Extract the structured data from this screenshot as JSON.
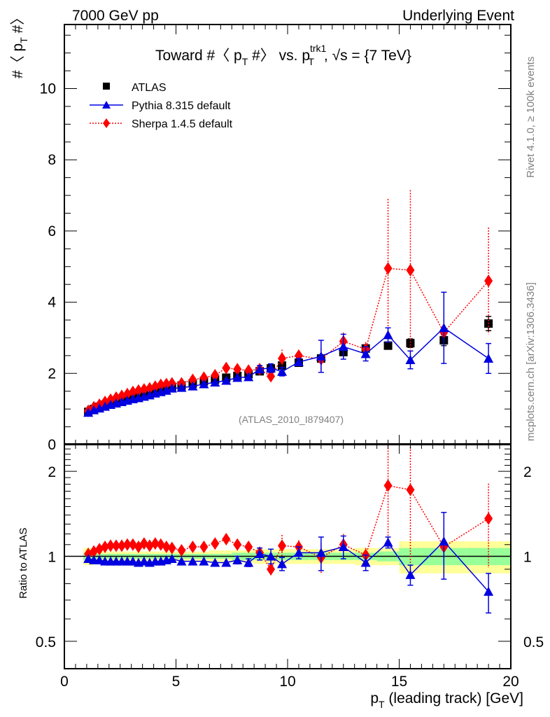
{
  "header": {
    "left": "7000 GeV pp",
    "right": "Underlying Event"
  },
  "side_labels": {
    "rivet": "Rivet 4.1.0, ≥ 100k events",
    "mcplots": "mcplots.cern.ch [arXiv:1306.3436]"
  },
  "watermark": "(ATLAS_2010_I879407)",
  "chart_data": [
    {
      "type": "scatter",
      "panel": "main",
      "title": "Toward #〈 p_T #〉 vs. p_T^trk1, √s = {7 TeV}",
      "title_parts": {
        "a": "Toward #〈 p",
        "sub1": "T",
        "b": " #〉 vs. p",
        "sup": "trk1",
        "sub2": "T",
        "c": ", √s = {7 TeV}"
      },
      "xlabel": "p_T (leading track) [GeV]",
      "ylabel": "#〈 p_T #〉",
      "xlim": [
        0,
        20
      ],
      "ylim": [
        0,
        11.8
      ],
      "yticks": [
        0,
        2,
        4,
        6,
        8,
        10
      ],
      "ytick_labels": [
        "0",
        "2",
        "4",
        "6",
        "8",
        "10"
      ],
      "legend_position": "top-left",
      "x": [
        1.07,
        1.32,
        1.57,
        1.82,
        2.07,
        2.32,
        2.57,
        2.82,
        3.07,
        3.32,
        3.57,
        3.82,
        4.07,
        4.32,
        4.57,
        4.82,
        5.25,
        5.75,
        6.25,
        6.75,
        7.25,
        7.75,
        8.25,
        8.75,
        9.25,
        9.75,
        10.5,
        11.5,
        12.5,
        13.5,
        14.5,
        15.5,
        17.0,
        19.0
      ],
      "series": [
        {
          "name": "ATLAS",
          "style": "marker-square",
          "color": "#000000",
          "values": [
            0.92,
            1.0,
            1.06,
            1.12,
            1.17,
            1.22,
            1.26,
            1.3,
            1.34,
            1.38,
            1.42,
            1.46,
            1.5,
            1.54,
            1.58,
            1.62,
            1.66,
            1.72,
            1.78,
            1.83,
            1.88,
            1.93,
            1.98,
            2.06,
            2.14,
            2.22,
            2.3,
            2.42,
            2.6,
            2.7,
            2.78,
            2.85,
            2.93,
            3.4
          ],
          "errors": [
            0.01,
            0.01,
            0.01,
            0.01,
            0.01,
            0.01,
            0.01,
            0.01,
            0.01,
            0.01,
            0.01,
            0.01,
            0.01,
            0.01,
            0.01,
            0.01,
            0.01,
            0.02,
            0.02,
            0.02,
            0.02,
            0.02,
            0.03,
            0.03,
            0.04,
            0.04,
            0.05,
            0.06,
            0.08,
            0.1,
            0.1,
            0.12,
            0.15,
            0.2
          ]
        },
        {
          "name": "Pythia 8.315 default",
          "style": "solid-triangle",
          "color": "#0000e0",
          "values": [
            0.9,
            0.97,
            1.02,
            1.07,
            1.12,
            1.16,
            1.2,
            1.24,
            1.28,
            1.31,
            1.35,
            1.39,
            1.44,
            1.48,
            1.52,
            1.58,
            1.6,
            1.64,
            1.7,
            1.75,
            1.8,
            1.88,
            1.9,
            2.12,
            2.15,
            2.05,
            2.32,
            2.48,
            2.75,
            2.55,
            3.08,
            2.38,
            3.28,
            2.42
          ],
          "errors": [
            0.01,
            0.01,
            0.01,
            0.01,
            0.01,
            0.01,
            0.01,
            0.01,
            0.01,
            0.01,
            0.01,
            0.01,
            0.01,
            0.02,
            0.02,
            0.02,
            0.02,
            0.03,
            0.03,
            0.04,
            0.05,
            0.06,
            0.07,
            0.1,
            0.12,
            0.12,
            0.1,
            0.45,
            0.35,
            0.2,
            0.2,
            0.25,
            1.0,
            0.42
          ]
        },
        {
          "name": "Sherpa 1.4.5 default",
          "style": "dotted-diamond",
          "color": "#ff0000",
          "values": [
            0.95,
            1.05,
            1.12,
            1.2,
            1.26,
            1.32,
            1.37,
            1.42,
            1.48,
            1.52,
            1.55,
            1.58,
            1.63,
            1.68,
            1.7,
            1.72,
            1.72,
            1.82,
            1.88,
            1.95,
            2.15,
            2.12,
            2.08,
            2.12,
            1.92,
            2.42,
            2.5,
            2.4,
            2.9,
            2.68,
            4.95,
            4.9,
            3.15,
            4.6
          ],
          "errors": [
            0.01,
            0.01,
            0.01,
            0.01,
            0.01,
            0.01,
            0.01,
            0.01,
            0.01,
            0.02,
            0.02,
            0.02,
            0.02,
            0.03,
            0.03,
            0.04,
            0.04,
            0.05,
            0.06,
            0.07,
            0.08,
            0.1,
            0.1,
            0.12,
            0.12,
            0.25,
            0.15,
            0.3,
            0.25,
            0.2,
            1.95,
            2.25,
            0.5,
            1.5
          ]
        }
      ]
    },
    {
      "type": "scatter",
      "panel": "ratio",
      "ylabel": "Ratio to ATLAS",
      "xlabel": "p_T (leading track) [GeV]",
      "xlim": [
        0,
        20
      ],
      "ylim": [
        0.4,
        2.5
      ],
      "yscale": "log",
      "yticks": [
        0.5,
        1,
        2
      ],
      "ytick_labels": [
        "0.5",
        "1",
        "2"
      ],
      "xticks": [
        0,
        5,
        10,
        15,
        20
      ],
      "xtick_labels": [
        "0",
        "5",
        "10",
        "15",
        "20"
      ],
      "reference_line": 1,
      "bands": {
        "stat_color": "#99ff99",
        "total_color": "#ffff99",
        "edges": [
          0.85,
          1.3,
          1.8,
          2.3,
          2.8,
          3.3,
          3.8,
          4.3,
          4.8,
          5.5,
          6.5,
          7.5,
          8.5,
          9.5,
          10.0,
          11.0,
          12.0,
          13.0,
          14.0,
          15.0,
          16.0,
          18.0,
          20.0
        ],
        "stat": [
          0.03,
          0.02,
          0.02,
          0.02,
          0.02,
          0.02,
          0.02,
          0.02,
          0.02,
          0.02,
          0.02,
          0.03,
          0.03,
          0.03,
          0.03,
          0.03,
          0.03,
          0.03,
          0.04,
          0.07,
          0.07,
          0.07
        ],
        "total": [
          0.07,
          0.04,
          0.04,
          0.04,
          0.04,
          0.04,
          0.04,
          0.04,
          0.04,
          0.04,
          0.05,
          0.05,
          0.06,
          0.06,
          0.06,
          0.06,
          0.06,
          0.07,
          0.07,
          0.13,
          0.13,
          0.13
        ]
      },
      "x": [
        1.07,
        1.32,
        1.57,
        1.82,
        2.07,
        2.32,
        2.57,
        2.82,
        3.07,
        3.32,
        3.57,
        3.82,
        4.07,
        4.32,
        4.57,
        4.82,
        5.25,
        5.75,
        6.25,
        6.75,
        7.25,
        7.75,
        8.25,
        8.75,
        9.25,
        9.75,
        10.5,
        11.5,
        12.5,
        13.5,
        14.5,
        15.5,
        17.0,
        19.0
      ],
      "series": [
        {
          "name": "Pythia 8.315 default",
          "color": "#0000e0",
          "values": [
            0.98,
            0.97,
            0.97,
            0.96,
            0.96,
            0.96,
            0.96,
            0.96,
            0.96,
            0.95,
            0.96,
            0.95,
            0.96,
            0.96,
            0.97,
            0.98,
            0.96,
            0.96,
            0.96,
            0.95,
            0.95,
            0.97,
            0.95,
            1.02,
            1.0,
            0.94,
            1.03,
            1.03,
            1.08,
            0.95,
            1.12,
            0.86,
            1.13,
            0.75
          ],
          "errors": [
            0.01,
            0.01,
            0.01,
            0.01,
            0.01,
            0.01,
            0.01,
            0.01,
            0.01,
            0.01,
            0.01,
            0.01,
            0.01,
            0.01,
            0.01,
            0.01,
            0.01,
            0.01,
            0.02,
            0.02,
            0.02,
            0.03,
            0.03,
            0.05,
            0.06,
            0.05,
            0.05,
            0.14,
            0.1,
            0.06,
            0.05,
            0.07,
            0.3,
            0.12
          ]
        },
        {
          "name": "Sherpa 1.4.5 default",
          "color": "#ff0000",
          "values": [
            1.02,
            1.04,
            1.06,
            1.08,
            1.09,
            1.09,
            1.09,
            1.1,
            1.1,
            1.08,
            1.11,
            1.09,
            1.11,
            1.1,
            1.08,
            1.07,
            1.05,
            1.08,
            1.08,
            1.11,
            1.15,
            1.1,
            1.08,
            1.03,
            0.9,
            1.09,
            1.08,
            0.99,
            1.1,
            1.01,
            1.78,
            1.72,
            1.08,
            1.36
          ],
          "errors": [
            0.01,
            0.01,
            0.01,
            0.01,
            0.01,
            0.01,
            0.01,
            0.01,
            0.01,
            0.01,
            0.01,
            0.01,
            0.01,
            0.01,
            0.01,
            0.01,
            0.02,
            0.02,
            0.03,
            0.04,
            0.04,
            0.05,
            0.05,
            0.05,
            0.05,
            0.1,
            0.06,
            0.12,
            0.1,
            0.06,
            0.7,
            0.8,
            0.17,
            0.45
          ]
        }
      ]
    }
  ]
}
